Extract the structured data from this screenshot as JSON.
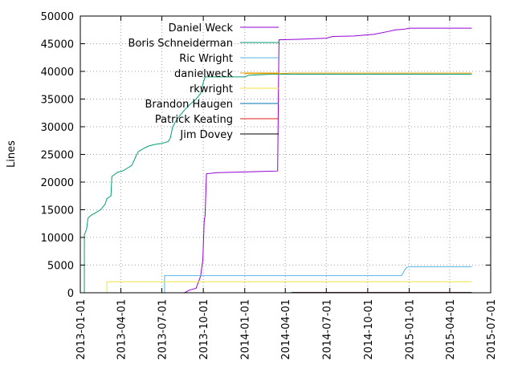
{
  "chart_data": {
    "type": "line",
    "title": "",
    "xlabel": "",
    "ylabel": "Lines",
    "x_axis": {
      "type": "date",
      "range": [
        "2013-01-01",
        "2015-07-01"
      ],
      "ticks": [
        "2013-01-01",
        "2013-04-01",
        "2013-07-01",
        "2013-10-01",
        "2014-01-01",
        "2014-04-01",
        "2014-07-01",
        "2014-10-01",
        "2015-01-01",
        "2015-04-01",
        "2015-07-01"
      ]
    },
    "y_axis": {
      "range": [
        0,
        50000
      ],
      "ticks": [
        0,
        5000,
        10000,
        15000,
        20000,
        25000,
        30000,
        35000,
        40000,
        45000,
        50000
      ]
    },
    "grid": true,
    "legend_position": "top-left",
    "series": [
      {
        "name": "Daniel Weck",
        "color": "#9400d3",
        "points": [
          [
            "2013-08-20",
            0
          ],
          [
            "2013-09-01",
            500
          ],
          [
            "2013-09-15",
            800
          ],
          [
            "2013-09-25",
            3000
          ],
          [
            "2013-09-30",
            6000
          ],
          [
            "2013-10-03",
            13000
          ],
          [
            "2013-10-05",
            14000
          ],
          [
            "2013-10-08",
            21500
          ],
          [
            "2013-11-01",
            21700
          ],
          [
            "2013-12-15",
            21800
          ],
          [
            "2014-02-01",
            21900
          ],
          [
            "2014-03-15",
            22000
          ],
          [
            "2014-03-18",
            45700
          ],
          [
            "2014-05-01",
            45800
          ],
          [
            "2014-06-01",
            45900
          ],
          [
            "2014-07-01",
            46000
          ],
          [
            "2014-07-15",
            46300
          ],
          [
            "2014-09-01",
            46400
          ],
          [
            "2014-10-15",
            46700
          ],
          [
            "2014-11-15",
            47200
          ],
          [
            "2014-12-01",
            47500
          ],
          [
            "2014-12-20",
            47600
          ],
          [
            "2015-01-01",
            47800
          ],
          [
            "2015-05-20",
            47800
          ]
        ]
      },
      {
        "name": "Boris Schneiderman",
        "color": "#009e73",
        "points": [
          [
            "2013-01-10",
            0
          ],
          [
            "2013-01-10",
            10500
          ],
          [
            "2013-01-15",
            11500
          ],
          [
            "2013-01-18",
            13500
          ],
          [
            "2013-01-25",
            14000
          ],
          [
            "2013-02-05",
            14500
          ],
          [
            "2013-02-15",
            15000
          ],
          [
            "2013-02-25",
            16000
          ],
          [
            "2013-03-01",
            17000
          ],
          [
            "2013-03-10",
            17500
          ],
          [
            "2013-03-12",
            21000
          ],
          [
            "2013-03-20",
            21500
          ],
          [
            "2013-03-25",
            21800
          ],
          [
            "2013-04-05",
            22000
          ],
          [
            "2013-04-15",
            22500
          ],
          [
            "2013-04-25",
            23000
          ],
          [
            "2013-05-01",
            24000
          ],
          [
            "2013-05-05",
            24800
          ],
          [
            "2013-05-10",
            25500
          ],
          [
            "2013-05-20",
            26000
          ],
          [
            "2013-06-01",
            26500
          ],
          [
            "2013-06-15",
            26800
          ],
          [
            "2013-07-01",
            27000
          ],
          [
            "2013-07-15",
            27300
          ],
          [
            "2013-07-20",
            28000
          ],
          [
            "2013-07-25",
            30000
          ],
          [
            "2013-08-01",
            31000
          ],
          [
            "2013-08-10",
            32000
          ],
          [
            "2013-08-20",
            33000
          ],
          [
            "2013-09-01",
            34000
          ],
          [
            "2013-09-15",
            35000
          ],
          [
            "2013-09-25",
            36000
          ],
          [
            "2013-10-01",
            38000
          ],
          [
            "2013-10-05",
            39000
          ],
          [
            "2014-01-01",
            39000
          ],
          [
            "2014-01-10",
            39300
          ],
          [
            "2014-03-01",
            39500
          ],
          [
            "2014-06-01",
            39500
          ],
          [
            "2015-05-20",
            39500
          ]
        ]
      },
      {
        "name": "Ric Wright",
        "color": "#56b4e9",
        "points": [
          [
            "2013-07-07",
            0
          ],
          [
            "2013-07-07",
            3100
          ],
          [
            "2014-12-15",
            3100
          ],
          [
            "2014-12-25",
            4500
          ],
          [
            "2015-01-01",
            4700
          ],
          [
            "2015-05-20",
            4700
          ]
        ]
      },
      {
        "name": "danielweck",
        "color": "#e69f00",
        "points": [
          [
            "2014-01-01",
            39600
          ],
          [
            "2014-03-20",
            39600
          ],
          [
            "2014-04-15",
            39700
          ],
          [
            "2015-05-20",
            39700
          ]
        ]
      },
      {
        "name": "rkwright",
        "color": "#f0e442",
        "points": [
          [
            "2013-03-01",
            0
          ],
          [
            "2013-03-01",
            2000
          ],
          [
            "2015-05-20",
            2000
          ]
        ]
      },
      {
        "name": "Brandon Haugen",
        "color": "#0072b2",
        "points": [
          [
            "2014-04-15",
            0
          ],
          [
            "2014-04-15",
            80
          ],
          [
            "2015-05-20",
            80
          ]
        ]
      },
      {
        "name": "Patrick Keating",
        "color": "#e51e10",
        "points": [
          [
            "2014-04-20",
            0
          ],
          [
            "2014-04-20",
            40
          ],
          [
            "2015-05-20",
            40
          ]
        ]
      },
      {
        "name": "Jim Dovey",
        "color": "#000000",
        "points": [
          [
            "2014-04-20",
            0
          ],
          [
            "2014-04-20",
            20
          ],
          [
            "2015-05-20",
            20
          ]
        ]
      }
    ]
  }
}
